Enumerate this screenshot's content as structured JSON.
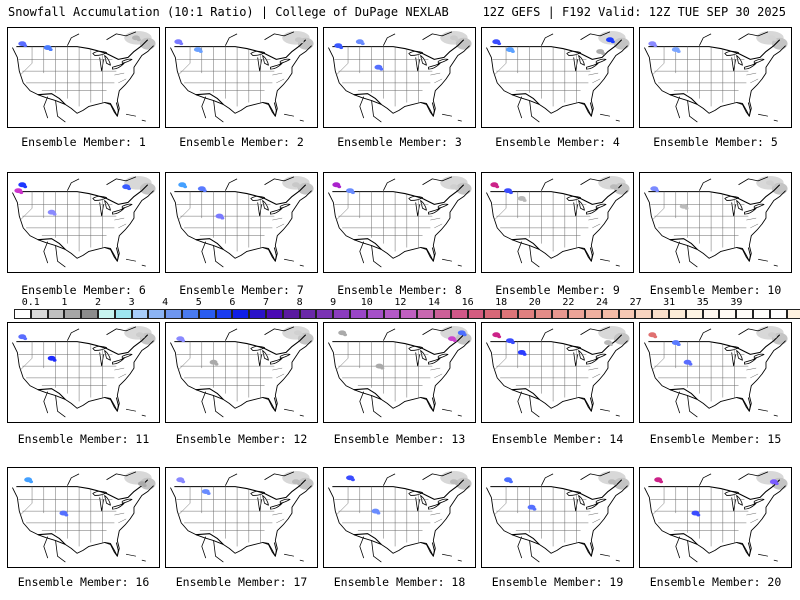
{
  "header": {
    "title": "Snowfall Accumulation (10:1 Ratio) | College of DuPage NEXLAB",
    "valid": "12Z GEFS | F192 Valid: 12Z TUE SEP 30 2025"
  },
  "members": [
    {
      "label": "Ensemble Member: 1",
      "snow": [
        {
          "x": 14,
          "y": 16,
          "c": "#5a6dff"
        },
        {
          "x": 40,
          "y": 20,
          "c": "#4a7cff"
        },
        {
          "x": 130,
          "y": 10,
          "c": "#b3b3b3"
        }
      ]
    },
    {
      "label": "Ensemble Member: 2",
      "snow": [
        {
          "x": 12,
          "y": 14,
          "c": "#7a7aff"
        },
        {
          "x": 32,
          "y": 22,
          "c": "#6aa0ff"
        },
        {
          "x": 135,
          "y": 12,
          "c": "#c8c8c8"
        }
      ]
    },
    {
      "label": "Ensemble Member: 3",
      "snow": [
        {
          "x": 14,
          "y": 18,
          "c": "#3a58ff"
        },
        {
          "x": 36,
          "y": 14,
          "c": "#6a8cff"
        },
        {
          "x": 55,
          "y": 40,
          "c": "#5570ff"
        },
        {
          "x": 132,
          "y": 10,
          "c": "#cccccc"
        }
      ]
    },
    {
      "label": "Ensemble Member: 4",
      "snow": [
        {
          "x": 14,
          "y": 14,
          "c": "#3a4cff"
        },
        {
          "x": 28,
          "y": 22,
          "c": "#5aa0ff"
        },
        {
          "x": 130,
          "y": 12,
          "c": "#1e3cff"
        },
        {
          "x": 120,
          "y": 24,
          "c": "#aaaaaa"
        }
      ]
    },
    {
      "label": "Ensemble Member: 5",
      "snow": [
        {
          "x": 12,
          "y": 16,
          "c": "#8a8aff"
        },
        {
          "x": 36,
          "y": 22,
          "c": "#7aa4ff"
        },
        {
          "x": 134,
          "y": 10,
          "c": "#d5d5d5"
        }
      ]
    },
    {
      "label": "Ensemble Member: 6",
      "snow": [
        {
          "x": 14,
          "y": 12,
          "c": "#1e38ff"
        },
        {
          "x": 10,
          "y": 18,
          "c": "#cc33cc"
        },
        {
          "x": 120,
          "y": 14,
          "c": "#3a5cff"
        },
        {
          "x": 44,
          "y": 40,
          "c": "#8a8aff"
        }
      ]
    },
    {
      "label": "Ensemble Member: 7",
      "snow": [
        {
          "x": 16,
          "y": 12,
          "c": "#44a0ff"
        },
        {
          "x": 36,
          "y": 16,
          "c": "#5a7aff"
        },
        {
          "x": 54,
          "y": 44,
          "c": "#7a7aff"
        },
        {
          "x": 132,
          "y": 12,
          "c": "#c8c8c8"
        }
      ]
    },
    {
      "label": "Ensemble Member: 8",
      "snow": [
        {
          "x": 12,
          "y": 12,
          "c": "#aa22cc"
        },
        {
          "x": 26,
          "y": 18,
          "c": "#6a8cff"
        },
        {
          "x": 132,
          "y": 14,
          "c": "#cfcfcf"
        }
      ]
    },
    {
      "label": "Ensemble Member: 9",
      "snow": [
        {
          "x": 12,
          "y": 12,
          "c": "#cc2288"
        },
        {
          "x": 26,
          "y": 18,
          "c": "#3a4cff"
        },
        {
          "x": 40,
          "y": 26,
          "c": "#b8b8b8"
        },
        {
          "x": 134,
          "y": 14,
          "c": "#bbbbbb"
        }
      ]
    },
    {
      "label": "Ensemble Member: 10",
      "snow": [
        {
          "x": 14,
          "y": 16,
          "c": "#7a8aff"
        },
        {
          "x": 44,
          "y": 34,
          "c": "#bbbbbb"
        },
        {
          "x": 132,
          "y": 10,
          "c": "#d0d0d0"
        }
      ]
    },
    {
      "label": "Ensemble Member: 11",
      "snow": [
        {
          "x": 14,
          "y": 14,
          "c": "#5a6dff"
        },
        {
          "x": 44,
          "y": 36,
          "c": "#1e2cff"
        },
        {
          "x": 134,
          "y": 12,
          "c": "#cccccc"
        }
      ]
    },
    {
      "label": "Ensemble Member: 12",
      "snow": [
        {
          "x": 14,
          "y": 16,
          "c": "#8a8aff"
        },
        {
          "x": 48,
          "y": 40,
          "c": "#aaaaaa"
        },
        {
          "x": 134,
          "y": 10,
          "c": "#d0d0d0"
        }
      ]
    },
    {
      "label": "Ensemble Member: 13",
      "snow": [
        {
          "x": 18,
          "y": 10,
          "c": "#aaaaaa"
        },
        {
          "x": 56,
          "y": 44,
          "c": "#aaaaaa"
        },
        {
          "x": 130,
          "y": 16,
          "c": "#cc44cc"
        },
        {
          "x": 140,
          "y": 10,
          "c": "#4a6dff"
        }
      ]
    },
    {
      "label": "Ensemble Member: 14",
      "snow": [
        {
          "x": 14,
          "y": 12,
          "c": "#cc2288"
        },
        {
          "x": 28,
          "y": 18,
          "c": "#3a4cff"
        },
        {
          "x": 40,
          "y": 30,
          "c": "#2a3cff"
        },
        {
          "x": 128,
          "y": 20,
          "c": "#b8b8b8"
        }
      ]
    },
    {
      "label": "Ensemble Member: 15",
      "snow": [
        {
          "x": 12,
          "y": 12,
          "c": "#e07070"
        },
        {
          "x": 36,
          "y": 20,
          "c": "#5a7aff"
        },
        {
          "x": 48,
          "y": 40,
          "c": "#5a6dff"
        },
        {
          "x": 134,
          "y": 12,
          "c": "#d0d0d0"
        }
      ]
    },
    {
      "label": "Ensemble Member: 16",
      "snow": [
        {
          "x": 20,
          "y": 12,
          "c": "#44a0ff"
        },
        {
          "x": 56,
          "y": 46,
          "c": "#5570ff"
        },
        {
          "x": 136,
          "y": 16,
          "c": "#aaaaaa"
        }
      ]
    },
    {
      "label": "Ensemble Member: 17",
      "snow": [
        {
          "x": 14,
          "y": 12,
          "c": "#8888ff"
        },
        {
          "x": 40,
          "y": 24,
          "c": "#6a8cff"
        },
        {
          "x": 132,
          "y": 14,
          "c": "#bbbbbb"
        }
      ]
    },
    {
      "label": "Ensemble Member: 18",
      "snow": [
        {
          "x": 26,
          "y": 10,
          "c": "#3a4cff"
        },
        {
          "x": 52,
          "y": 44,
          "c": "#6a8cff"
        },
        {
          "x": 132,
          "y": 14,
          "c": "#bbbbbb"
        }
      ]
    },
    {
      "label": "Ensemble Member: 19",
      "snow": [
        {
          "x": 26,
          "y": 12,
          "c": "#4a6dff"
        },
        {
          "x": 50,
          "y": 40,
          "c": "#5570ff"
        },
        {
          "x": 132,
          "y": 14,
          "c": "#bbbbbb"
        }
      ]
    },
    {
      "label": "Ensemble Member: 20",
      "snow": [
        {
          "x": 18,
          "y": 12,
          "c": "#cc2288"
        },
        {
          "x": 56,
          "y": 46,
          "c": "#3a4cff"
        },
        {
          "x": 136,
          "y": 14,
          "c": "#7a5cff"
        }
      ]
    }
  ],
  "colorbar": {
    "labels": [
      "0.1",
      "1",
      "2",
      "3",
      "4",
      "5",
      "6",
      "7",
      "8",
      "9",
      "10",
      "12",
      "14",
      "16",
      "18",
      "20",
      "22",
      "24",
      "27",
      "31",
      "35",
      "39"
    ],
    "colors": [
      "#ffffff",
      "#d9d9d9",
      "#bfbfbf",
      "#a6a6a6",
      "#8c8c8c",
      "#c8f5f0",
      "#9ee6f0",
      "#a8cdfa",
      "#8cb4f5",
      "#6e96f0",
      "#4a7bf0",
      "#2a5cf0",
      "#1a3cf0",
      "#0f1ee6",
      "#2a12c8",
      "#4a0ab4",
      "#5a1aa0",
      "#6a28a8",
      "#7a32b4",
      "#8a3cbe",
      "#9a46c8",
      "#a550c8",
      "#b45ac8",
      "#c060c0",
      "#c868b0",
      "#cc6098",
      "#d05888",
      "#d45c80",
      "#d86878",
      "#dc7478",
      "#e08080",
      "#e48c88",
      "#e89890",
      "#eca498",
      "#f0b0a0",
      "#f4bca8",
      "#f6c8b4",
      "#f8d4c0",
      "#fae0cc",
      "#fcecd8",
      "#fef4e4",
      "#fff8f0",
      "#fffaf4",
      "#fffcf8",
      "#fffefb",
      "#ffffff",
      "#fff2e0"
    ]
  }
}
